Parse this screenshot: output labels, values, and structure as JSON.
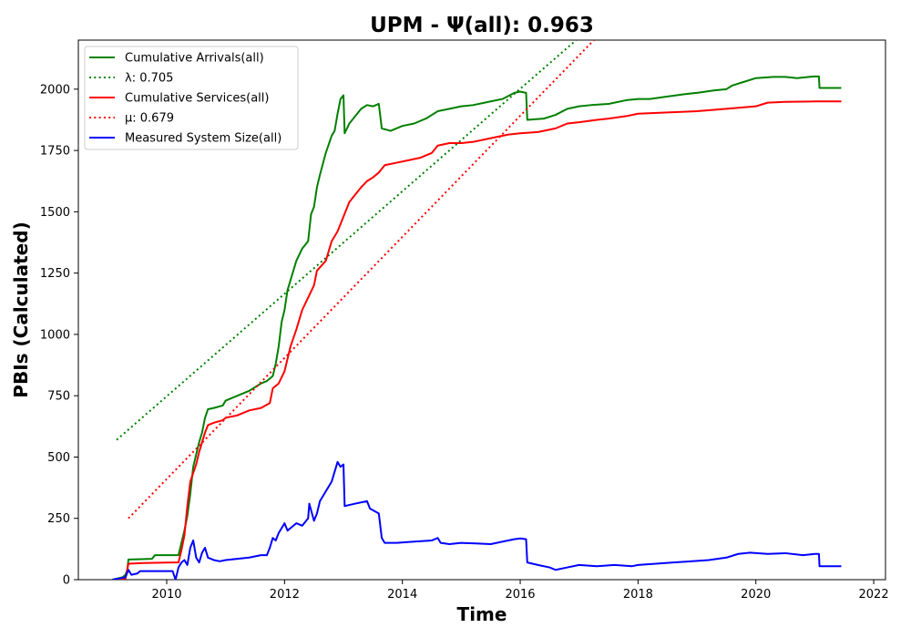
{
  "chart_data": {
    "type": "line",
    "title": "UPM -  Ψ(all): 0.963",
    "xlabel": "Time",
    "ylabel": "PBIs (Calculated)",
    "xlim": [
      2008.5,
      2022.2
    ],
    "ylim": [
      0,
      2200
    ],
    "xticks": [
      2010,
      2012,
      2014,
      2016,
      2018,
      2020,
      2022
    ],
    "xtick_labels": [
      "2010",
      "2012",
      "2014",
      "2016",
      "2018",
      "2020",
      "2022"
    ],
    "yticks": [
      0,
      250,
      500,
      750,
      1000,
      1250,
      1500,
      1750,
      2000
    ],
    "ytick_labels": [
      "0",
      "250",
      "500",
      "750",
      "1000",
      "1250",
      "1500",
      "1750",
      "2000"
    ],
    "grid": false,
    "legend_position": "top-left",
    "series": [
      {
        "name": "Cumulative Arrivals(all)",
        "style": "solid",
        "color": "#008000",
        "points": [
          [
            2009.08,
            0
          ],
          [
            2009.25,
            10
          ],
          [
            2009.3,
            20
          ],
          [
            2009.33,
            40
          ],
          [
            2009.35,
            82
          ],
          [
            2009.5,
            83
          ],
          [
            2009.75,
            85
          ],
          [
            2009.8,
            100
          ],
          [
            2010.0,
            100
          ],
          [
            2010.2,
            100
          ],
          [
            2010.25,
            150
          ],
          [
            2010.3,
            200
          ],
          [
            2010.35,
            260
          ],
          [
            2010.4,
            350
          ],
          [
            2010.45,
            460
          ],
          [
            2010.5,
            510
          ],
          [
            2010.55,
            560
          ],
          [
            2010.6,
            600
          ],
          [
            2010.65,
            660
          ],
          [
            2010.7,
            695
          ],
          [
            2010.8,
            700
          ],
          [
            2010.95,
            710
          ],
          [
            2011.0,
            730
          ],
          [
            2011.2,
            750
          ],
          [
            2011.4,
            770
          ],
          [
            2011.6,
            800
          ],
          [
            2011.7,
            810
          ],
          [
            2011.8,
            830
          ],
          [
            2011.85,
            880
          ],
          [
            2011.9,
            950
          ],
          [
            2011.95,
            1050
          ],
          [
            2012.0,
            1100
          ],
          [
            2012.05,
            1180
          ],
          [
            2012.1,
            1220
          ],
          [
            2012.2,
            1300
          ],
          [
            2012.3,
            1350
          ],
          [
            2012.4,
            1380
          ],
          [
            2012.45,
            1490
          ],
          [
            2012.5,
            1520
          ],
          [
            2012.55,
            1600
          ],
          [
            2012.6,
            1650
          ],
          [
            2012.7,
            1740
          ],
          [
            2012.8,
            1810
          ],
          [
            2012.85,
            1830
          ],
          [
            2012.9,
            1900
          ],
          [
            2012.95,
            1960
          ],
          [
            2013.0,
            1975
          ],
          [
            2013.02,
            1820
          ],
          [
            2013.1,
            1860
          ],
          [
            2013.2,
            1890
          ],
          [
            2013.3,
            1920
          ],
          [
            2013.4,
            1935
          ],
          [
            2013.5,
            1930
          ],
          [
            2013.6,
            1940
          ],
          [
            2013.65,
            1840
          ],
          [
            2013.8,
            1830
          ],
          [
            2014.0,
            1850
          ],
          [
            2014.2,
            1860
          ],
          [
            2014.4,
            1880
          ],
          [
            2014.6,
            1910
          ],
          [
            2014.8,
            1920
          ],
          [
            2015.0,
            1930
          ],
          [
            2015.2,
            1935
          ],
          [
            2015.5,
            1950
          ],
          [
            2015.7,
            1960
          ],
          [
            2015.9,
            1985
          ],
          [
            2016.0,
            1990
          ],
          [
            2016.1,
            1985
          ],
          [
            2016.12,
            1875
          ],
          [
            2016.4,
            1880
          ],
          [
            2016.6,
            1895
          ],
          [
            2016.8,
            1920
          ],
          [
            2017.0,
            1930
          ],
          [
            2017.2,
            1935
          ],
          [
            2017.5,
            1940
          ],
          [
            2017.8,
            1955
          ],
          [
            2018.0,
            1960
          ],
          [
            2018.2,
            1960
          ],
          [
            2018.5,
            1970
          ],
          [
            2018.8,
            1980
          ],
          [
            2019.0,
            1985
          ],
          [
            2019.3,
            1995
          ],
          [
            2019.5,
            2000
          ],
          [
            2019.6,
            2015
          ],
          [
            2019.8,
            2030
          ],
          [
            2020.0,
            2045
          ],
          [
            2020.3,
            2050
          ],
          [
            2020.5,
            2050
          ],
          [
            2020.7,
            2045
          ],
          [
            2020.9,
            2050
          ],
          [
            2021.0,
            2052
          ],
          [
            2021.07,
            2052
          ],
          [
            2021.08,
            2005
          ],
          [
            2021.45,
            2005
          ]
        ]
      },
      {
        "name": "λ: 0.705",
        "style": "dotted",
        "color": "#008000",
        "points": [
          [
            2009.15,
            570
          ],
          [
            2016.95,
            2200
          ]
        ]
      },
      {
        "name": "Cumulative Services(all)",
        "style": "solid",
        "color": "#ff0000",
        "points": [
          [
            2009.08,
            0
          ],
          [
            2009.3,
            5
          ],
          [
            2009.35,
            65
          ],
          [
            2009.6,
            68
          ],
          [
            2010.1,
            70
          ],
          [
            2010.2,
            70
          ],
          [
            2010.25,
            120
          ],
          [
            2010.3,
            180
          ],
          [
            2010.35,
            300
          ],
          [
            2010.4,
            400
          ],
          [
            2010.5,
            470
          ],
          [
            2010.55,
            520
          ],
          [
            2010.6,
            560
          ],
          [
            2010.65,
            600
          ],
          [
            2010.7,
            630
          ],
          [
            2010.8,
            640
          ],
          [
            2010.95,
            650
          ],
          [
            2011.0,
            660
          ],
          [
            2011.2,
            670
          ],
          [
            2011.4,
            690
          ],
          [
            2011.6,
            700
          ],
          [
            2011.75,
            720
          ],
          [
            2011.8,
            780
          ],
          [
            2011.9,
            800
          ],
          [
            2012.0,
            850
          ],
          [
            2012.1,
            950
          ],
          [
            2012.2,
            1020
          ],
          [
            2012.3,
            1100
          ],
          [
            2012.4,
            1150
          ],
          [
            2012.5,
            1200
          ],
          [
            2012.55,
            1260
          ],
          [
            2012.7,
            1300
          ],
          [
            2012.8,
            1380
          ],
          [
            2012.9,
            1420
          ],
          [
            2012.95,
            1450
          ],
          [
            2013.0,
            1480
          ],
          [
            2013.1,
            1540
          ],
          [
            2013.2,
            1570
          ],
          [
            2013.3,
            1600
          ],
          [
            2013.4,
            1625
          ],
          [
            2013.5,
            1640
          ],
          [
            2013.6,
            1660
          ],
          [
            2013.7,
            1690
          ],
          [
            2013.9,
            1700
          ],
          [
            2014.1,
            1710
          ],
          [
            2014.3,
            1720
          ],
          [
            2014.5,
            1740
          ],
          [
            2014.6,
            1770
          ],
          [
            2014.8,
            1780
          ],
          [
            2015.0,
            1780
          ],
          [
            2015.2,
            1785
          ],
          [
            2015.4,
            1795
          ],
          [
            2015.6,
            1805
          ],
          [
            2015.8,
            1815
          ],
          [
            2016.0,
            1820
          ],
          [
            2016.3,
            1825
          ],
          [
            2016.6,
            1840
          ],
          [
            2016.8,
            1860
          ],
          [
            2017.0,
            1865
          ],
          [
            2017.3,
            1875
          ],
          [
            2017.5,
            1880
          ],
          [
            2017.8,
            1890
          ],
          [
            2018.0,
            1900
          ],
          [
            2018.5,
            1905
          ],
          [
            2019.0,
            1910
          ],
          [
            2019.5,
            1920
          ],
          [
            2020.0,
            1930
          ],
          [
            2020.2,
            1945
          ],
          [
            2020.5,
            1948
          ],
          [
            2021.0,
            1950
          ],
          [
            2021.45,
            1950
          ]
        ]
      },
      {
        "name": "μ: 0.679",
        "style": "dotted",
        "color": "#ff0000",
        "points": [
          [
            2009.35,
            250
          ],
          [
            2017.25,
            2200
          ]
        ]
      },
      {
        "name": "Measured System Size(all)",
        "style": "solid",
        "color": "#0000ff",
        "points": [
          [
            2009.08,
            0
          ],
          [
            2009.3,
            10
          ],
          [
            2009.35,
            40
          ],
          [
            2009.4,
            20
          ],
          [
            2009.5,
            25
          ],
          [
            2009.55,
            35
          ],
          [
            2010.1,
            35
          ],
          [
            2010.15,
            0
          ],
          [
            2010.2,
            50
          ],
          [
            2010.25,
            70
          ],
          [
            2010.3,
            80
          ],
          [
            2010.35,
            60
          ],
          [
            2010.4,
            130
          ],
          [
            2010.45,
            160
          ],
          [
            2010.5,
            90
          ],
          [
            2010.55,
            70
          ],
          [
            2010.6,
            110
          ],
          [
            2010.65,
            130
          ],
          [
            2010.7,
            90
          ],
          [
            2010.8,
            80
          ],
          [
            2010.9,
            75
          ],
          [
            2011.0,
            80
          ],
          [
            2011.2,
            85
          ],
          [
            2011.4,
            90
          ],
          [
            2011.6,
            100
          ],
          [
            2011.7,
            100
          ],
          [
            2011.75,
            130
          ],
          [
            2011.8,
            170
          ],
          [
            2011.85,
            160
          ],
          [
            2011.9,
            190
          ],
          [
            2012.0,
            230
          ],
          [
            2012.05,
            200
          ],
          [
            2012.1,
            210
          ],
          [
            2012.2,
            230
          ],
          [
            2012.3,
            220
          ],
          [
            2012.4,
            250
          ],
          [
            2012.42,
            310
          ],
          [
            2012.5,
            240
          ],
          [
            2012.55,
            270
          ],
          [
            2012.6,
            320
          ],
          [
            2012.7,
            360
          ],
          [
            2012.8,
            400
          ],
          [
            2012.85,
            440
          ],
          [
            2012.9,
            480
          ],
          [
            2012.95,
            460
          ],
          [
            2013.0,
            470
          ],
          [
            2013.02,
            300
          ],
          [
            2013.2,
            310
          ],
          [
            2013.4,
            320
          ],
          [
            2013.45,
            290
          ],
          [
            2013.6,
            270
          ],
          [
            2013.65,
            170
          ],
          [
            2013.7,
            150
          ],
          [
            2013.9,
            150
          ],
          [
            2014.2,
            155
          ],
          [
            2014.5,
            160
          ],
          [
            2014.6,
            170
          ],
          [
            2014.65,
            150
          ],
          [
            2014.8,
            145
          ],
          [
            2015.0,
            150
          ],
          [
            2015.2,
            148
          ],
          [
            2015.5,
            145
          ],
          [
            2015.7,
            155
          ],
          [
            2015.9,
            165
          ],
          [
            2016.0,
            168
          ],
          [
            2016.1,
            165
          ],
          [
            2016.12,
            70
          ],
          [
            2016.3,
            60
          ],
          [
            2016.5,
            50
          ],
          [
            2016.6,
            40
          ],
          [
            2016.8,
            50
          ],
          [
            2017.0,
            60
          ],
          [
            2017.3,
            55
          ],
          [
            2017.6,
            60
          ],
          [
            2017.9,
            55
          ],
          [
            2018.0,
            60
          ],
          [
            2018.3,
            65
          ],
          [
            2018.6,
            70
          ],
          [
            2018.9,
            75
          ],
          [
            2019.2,
            80
          ],
          [
            2019.5,
            90
          ],
          [
            2019.7,
            105
          ],
          [
            2019.9,
            110
          ],
          [
            2020.2,
            105
          ],
          [
            2020.5,
            108
          ],
          [
            2020.8,
            100
          ],
          [
            2021.0,
            105
          ],
          [
            2021.07,
            105
          ],
          [
            2021.08,
            55
          ],
          [
            2021.45,
            55
          ]
        ]
      }
    ]
  }
}
